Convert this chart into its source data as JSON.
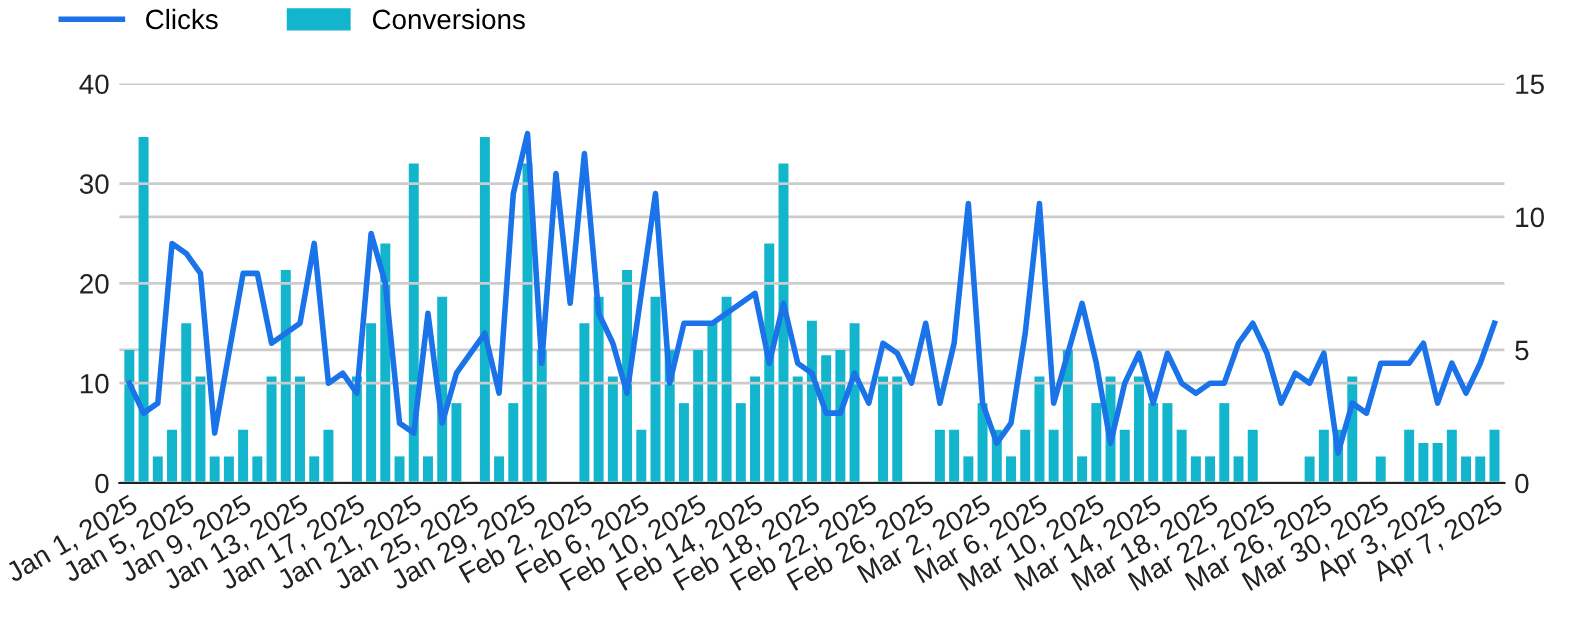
{
  "chart_data": {
    "type": "line",
    "categories": [
      "Jan 1, 2025",
      null,
      null,
      null,
      "Jan 5, 2025",
      null,
      null,
      null,
      "Jan 9, 2025",
      null,
      null,
      null,
      "Jan 13, 2025",
      null,
      null,
      null,
      "Jan 17, 2025",
      null,
      null,
      null,
      "Jan 21, 2025",
      null,
      null,
      null,
      "Jan 25, 2025",
      null,
      null,
      null,
      "Jan 29, 2025",
      null,
      null,
      null,
      "Feb 2, 2025",
      null,
      null,
      null,
      "Feb 6, 2025",
      null,
      null,
      null,
      "Feb 10, 2025",
      null,
      null,
      null,
      "Feb 14, 2025",
      null,
      null,
      null,
      "Feb 18, 2025",
      null,
      null,
      null,
      "Feb 22, 2025",
      null,
      null,
      null,
      "Feb 26, 2025",
      null,
      null,
      null,
      "Mar 2, 2025",
      null,
      null,
      null,
      "Mar 6, 2025",
      null,
      null,
      null,
      "Mar 10, 2025",
      null,
      null,
      null,
      "Mar 14, 2025",
      null,
      null,
      null,
      "Mar 18, 2025",
      null,
      null,
      null,
      "Mar 22, 2025",
      null,
      null,
      null,
      "Mar 26, 2025",
      null,
      null,
      null,
      "Mar 30, 2025",
      null,
      null,
      null,
      "Apr 3, 2025",
      null,
      null,
      null,
      "Apr 7, 2025"
    ],
    "series": [
      {
        "name": "Clicks",
        "color": "#1a73e8",
        "values": [
          10,
          7,
          8,
          24,
          23,
          21,
          5,
          13,
          21,
          21,
          14,
          15,
          16,
          24,
          10,
          11,
          9,
          25,
          20,
          6,
          5,
          17,
          6,
          11,
          13,
          15,
          9,
          29,
          35,
          12,
          31,
          18,
          33,
          17,
          14,
          9,
          19,
          29,
          10,
          16,
          16,
          16,
          17,
          18,
          19,
          12,
          18,
          12,
          11,
          7,
          7,
          11,
          8,
          14,
          13,
          10,
          16,
          8,
          14,
          28,
          8,
          4,
          6,
          15,
          28,
          8,
          13,
          18,
          12,
          4,
          10,
          13,
          8,
          13,
          10,
          9,
          10,
          10,
          14,
          16,
          13,
          8,
          11,
          10,
          13,
          3,
          8,
          7,
          12,
          12,
          12,
          14,
          8,
          12,
          9,
          12,
          16
        ]
      },
      {
        "name": "Conversions",
        "type": "bar",
        "axis": "y2",
        "color": "#12b5cb",
        "values": [
          5,
          13,
          1,
          2,
          6,
          4,
          1,
          1,
          2,
          1,
          4,
          8,
          4,
          1,
          2,
          0,
          4,
          6,
          9,
          1,
          12,
          1,
          7,
          3,
          0,
          13,
          1,
          3,
          12,
          5,
          0,
          0,
          6,
          7,
          4,
          8,
          2,
          7,
          5,
          3,
          5,
          6,
          7,
          3,
          4,
          9,
          12,
          4,
          6.1,
          4.8,
          5,
          6,
          0,
          4,
          4,
          0,
          0,
          2,
          2,
          1,
          3,
          2,
          1,
          2,
          4,
          2,
          5,
          1,
          3,
          4,
          2,
          4,
          3,
          3,
          2,
          1,
          1,
          3,
          1,
          2,
          0,
          0,
          0,
          1,
          2,
          2,
          4,
          0,
          1,
          0,
          2,
          1.5,
          1.5,
          2,
          1,
          1,
          2
        ]
      }
    ],
    "ylim": [
      0,
      40
    ],
    "yticks": [
      0,
      10,
      20,
      30,
      40
    ],
    "y2lim": [
      0,
      15
    ],
    "y2ticks": [
      0,
      5,
      10,
      15
    ],
    "grid": "y",
    "legend": "top left",
    "marker": "none",
    "line_style": "solid"
  }
}
